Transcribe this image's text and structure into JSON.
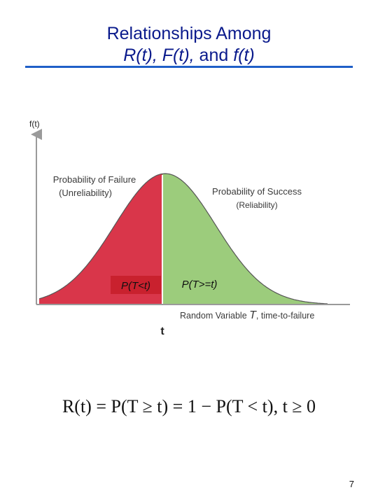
{
  "slide": {
    "title_line1": "Relationships Among",
    "title_line2_part1": "R(t), F(t),",
    "title_line2_part2": " and ",
    "title_line2_part3": "f(t)",
    "page_number": "7"
  },
  "diagram": {
    "y_axis_label": "f(t)",
    "failure_label_line1": "Probability of Failure",
    "failure_label_line2": "(Unreliability)",
    "success_label_line1": "Probability of Success",
    "success_label_line2": "(Reliability)",
    "left_area_label": "P(T<t)",
    "right_area_label": "P(T>=t)",
    "x_axis_label_prefix": "Random Variable ",
    "x_axis_label_var": "T",
    "x_axis_label_suffix": ", time-to-failure",
    "t_marker": "t",
    "colors": {
      "failure_fill": "#d9364a",
      "success_fill": "#9ccc7c",
      "curve": "#555555",
      "axis": "#9a9a9a"
    }
  },
  "formula": "R(t) = P(T ≥ t) = 1 − P(T < t),    t ≥ 0"
}
